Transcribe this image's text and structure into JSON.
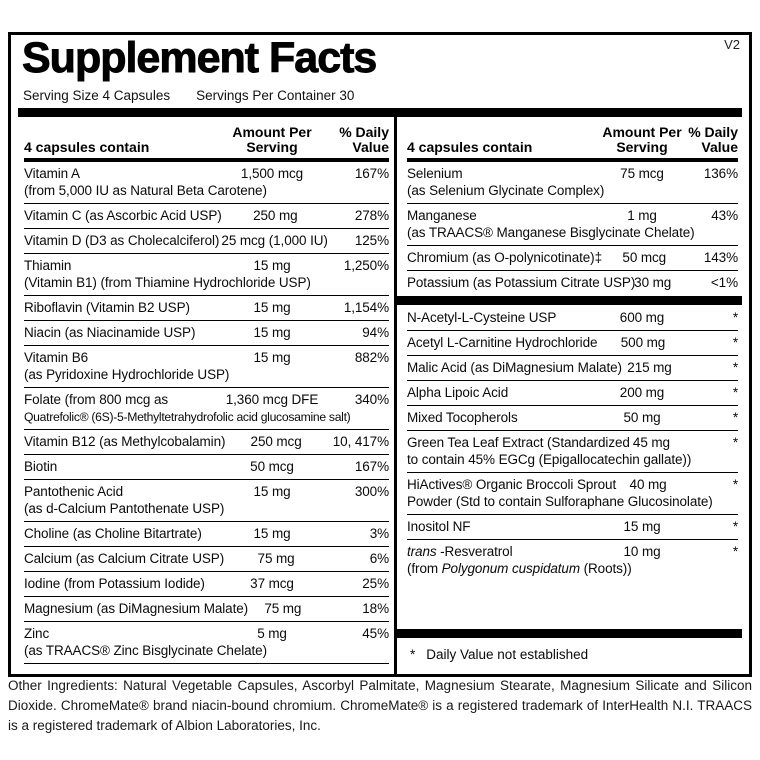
{
  "colors": {
    "ink": "#000000",
    "background": "#ffffff"
  },
  "version_tag": "V2",
  "title": "Supplement Facts",
  "serving_size": "Serving Size  4 Capsules",
  "servings_per_container": "Servings Per Container 30",
  "column_header": {
    "contain": "4 capsules contain",
    "amount": "Amount Per Serving",
    "dv": "% Daily Value"
  },
  "left_rows": [
    {
      "name": "Vitamin A",
      "sub": "(from 5,000 IU as Natural Beta Carotene)",
      "amount": "1,500 mcg",
      "dv": "167%"
    },
    {
      "name": "Vitamin C (as Ascorbic Acid USP)",
      "amount": "250 mg",
      "dv": "278%"
    },
    {
      "name": "Vitamin D (D3 as Cholecalciferol)",
      "amount": "25 mcg (1,000 IU)",
      "dv": "125%"
    },
    {
      "name": "Thiamin",
      "sub": "(Vitamin B1) (from Thiamine Hydrochloride USP)",
      "amount": "15 mg",
      "dv": "1,250%"
    },
    {
      "name": "Riboflavin (Vitamin B2 USP)",
      "amount": "15 mg",
      "dv": "1,154%"
    },
    {
      "name": "Niacin (as Niacinamide USP)",
      "amount": "15 mg",
      "dv": "94%"
    },
    {
      "name": "Vitamin B6",
      "sub": "(as Pyridoxine Hydrochloride USP)",
      "amount": "15 mg",
      "dv": "882%"
    },
    {
      "name": "Folate (from 800 mcg as",
      "sub": "Quatrefolic® (6S)-5-Methyltetrahydrofolic acid glucosamine salt)",
      "amount": "1,360 mcg DFE",
      "dv": "340%"
    },
    {
      "name": "Vitamin B12 (as Methylcobalamin)",
      "amount": "250 mcg",
      "dv": "10, 417%"
    },
    {
      "name": "Biotin",
      "amount": "50 mcg",
      "dv": "167%"
    },
    {
      "name": "Pantothenic Acid",
      "sub": "(as d-Calcium Pantothenate USP)",
      "amount": "15 mg",
      "dv": "300%"
    },
    {
      "name": "Choline (as Choline Bitartrate)",
      "amount": "15 mg",
      "dv": "3%"
    },
    {
      "name": "Calcium (as Calcium Citrate USP)",
      "amount": "75 mg",
      "dv": "6%"
    },
    {
      "name": "Iodine (from Potassium Iodide)",
      "amount": "37 mcg",
      "dv": "25%"
    },
    {
      "name": "Magnesium (as DiMagnesium Malate)",
      "amount": "75 mg",
      "dv": "18%"
    },
    {
      "name": "Zinc",
      "sub": "(as TRAACS® Zinc Bisglycinate Chelate)",
      "amount": "5 mg",
      "dv": "45%"
    }
  ],
  "right_rows_dv": [
    {
      "name": "Selenium",
      "sub": "(as Selenium Glycinate Complex)",
      "amount": "75 mcg",
      "dv": "136%"
    },
    {
      "name": "Manganese",
      "sub": "(as TRAACS® Manganese Bisglycinate Chelate)",
      "amount": "1 mg",
      "dv": "43%"
    },
    {
      "name": "Chromium (as O-polynicotinate)‡",
      "amount": "50 mcg",
      "dv": "143%"
    },
    {
      "name": "Potassium (as Potassium Citrate USP)",
      "amount": "30 mg",
      "dv": "<1%"
    }
  ],
  "right_rows_other": [
    {
      "name": "N-Acetyl-L-Cysteine USP",
      "amount": "600 mg",
      "dv": "*"
    },
    {
      "name": "Acetyl L-Carnitine Hydrochloride",
      "amount": "500 mg",
      "dv": "*"
    },
    {
      "name": "Malic Acid (as DiMagnesium Malate)",
      "amount": "215 mg",
      "dv": "*"
    },
    {
      "name": "Alpha Lipoic Acid",
      "amount": "200 mg",
      "dv": "*"
    },
    {
      "name": "Mixed Tocopherols",
      "amount": "50 mg",
      "dv": "*"
    },
    {
      "name": "Green Tea Leaf Extract  (Standardized",
      "sub": "to contain 45% EGCg (Epigallocatechin gallate))",
      "amount": "45 mg",
      "dv": "*"
    },
    {
      "name": "HiActives® Organic Broccoli Sprout",
      "sub": "Powder (Std to contain Sulforaphane Glucosinolate)",
      "amount": "40 mg",
      "dv": "*"
    },
    {
      "name": "Inositol NF",
      "amount": "15 mg",
      "dv": "*"
    },
    {
      "name_italic": "trans",
      "name": " -Resveratrol",
      "sub_pre": "(from ",
      "sub_italic": "Polygonum cuspidatum",
      "sub_post": " (Roots))",
      "amount": "10 mg",
      "dv": "*"
    }
  ],
  "footnote": {
    "star": "*",
    "text": "Daily Value not established"
  },
  "other_ingredients": "Other Ingredients: Natural Vegetable Capsules, Ascorbyl Palmitate, Magnesium Stearate, Magnesium Silicate and Silicon Dioxide. ChromeMate® brand niacin-bound chromium. ChromeMate® is a registered trademark of InterHealth N.I. TRAACS is a registered trademark of Albion Laboratories, Inc."
}
